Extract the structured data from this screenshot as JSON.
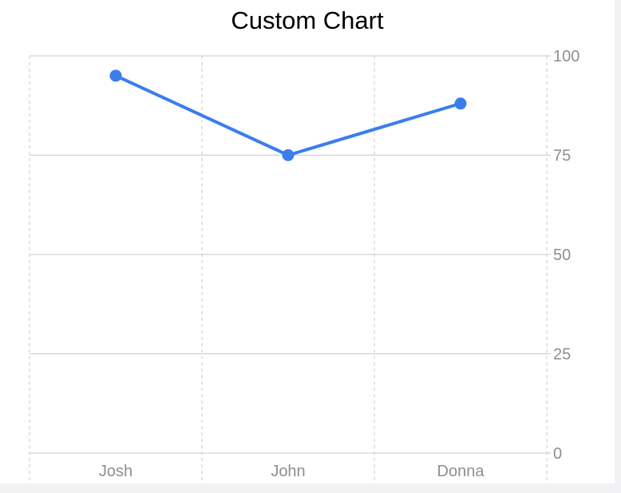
{
  "colors": {
    "line": "#3b7ded",
    "grid": "#c8c8cc",
    "tick_text": "#8e8e93"
  },
  "chart_data": {
    "type": "line",
    "title": "Custom Chart",
    "categories": [
      "Josh",
      "John",
      "Donna"
    ],
    "series": [
      {
        "values": [
          95,
          75,
          88
        ]
      }
    ],
    "ylim": [
      0,
      100
    ],
    "yticks": [
      "0",
      "25",
      "50",
      "75",
      "100"
    ],
    "y_axis_position": "right",
    "grid": true,
    "markers": true
  }
}
